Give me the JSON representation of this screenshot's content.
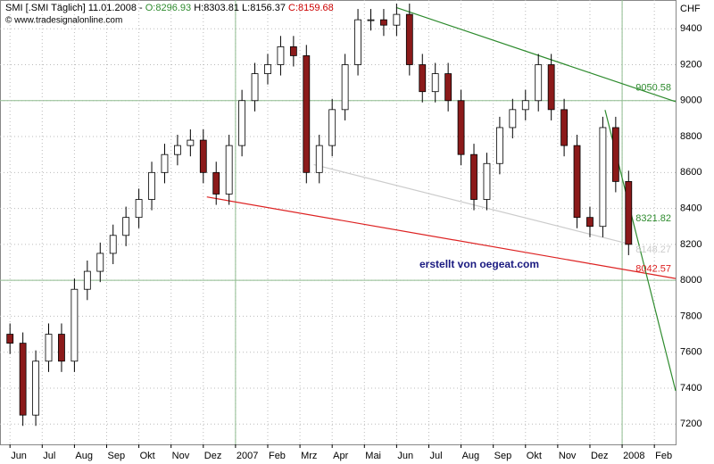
{
  "chart_data": {
    "type": "candlestick",
    "header": {
      "symbol": "SMI [.SMI Täglich] 11.01.2008 -",
      "open_label": "O:",
      "open": 8296.93,
      "high_label": "H:",
      "high": 8303.81,
      "low_label": "L:",
      "low": 8156.37,
      "close_label": "C:",
      "close": 8159.68
    },
    "copyright": "© www.tradesignalonline.com",
    "y_axis_label": "CHF",
    "annotation": "erstellt von oegeat.com",
    "x": [
      0,
      0.4,
      0.8,
      1.2,
      1.6,
      2,
      2.4,
      2.8,
      3.2,
      3.6,
      4,
      4.4,
      4.8,
      5.2,
      5.6,
      6,
      6.4,
      6.8,
      7.2,
      7.6,
      8,
      8.4,
      8.8,
      9.2,
      9.6,
      10,
      10.4,
      10.8,
      11.2,
      11.6,
      12,
      12.4,
      12.8,
      13.2,
      13.6,
      14,
      14.4,
      14.8,
      15.2,
      15.6,
      16,
      16.4,
      16.8,
      17.2,
      17.6,
      18,
      18.4,
      18.8,
      19.2
    ],
    "open": [
      7700,
      7650,
      7250,
      7550,
      7700,
      7550,
      7950,
      8050,
      8150,
      8250,
      8350,
      8450,
      8600,
      8700,
      8750,
      8780,
      8600,
      8480,
      8750,
      9000,
      9150,
      9200,
      9300,
      9250,
      8600,
      8750,
      8950,
      9200,
      9450,
      9450,
      9420,
      9480,
      9200,
      9050,
      9150,
      9000,
      8700,
      8450,
      8650,
      8850,
      8950,
      9000,
      9200,
      8950,
      8750,
      8350,
      8300,
      8850,
      8550
    ],
    "high": [
      7760,
      7710,
      7610,
      7760,
      7760,
      8010,
      8110,
      8210,
      8310,
      8410,
      8510,
      8660,
      8760,
      8810,
      8840,
      8840,
      8660,
      8810,
      9060,
      9210,
      9260,
      9360,
      9360,
      9310,
      8810,
      9010,
      9260,
      9510,
      9510,
      9510,
      9540,
      9540,
      9260,
      9210,
      9210,
      9060,
      8760,
      8710,
      8910,
      9010,
      9060,
      9260,
      9260,
      9010,
      8810,
      8410,
      8910,
      8910,
      8610
    ],
    "low": [
      7590,
      7190,
      7190,
      7490,
      7490,
      7490,
      7890,
      7990,
      8090,
      8190,
      8290,
      8390,
      8540,
      8640,
      8690,
      8540,
      8420,
      8420,
      8690,
      8940,
      9090,
      9140,
      9190,
      8540,
      8540,
      8690,
      8890,
      9140,
      9390,
      9360,
      9360,
      9140,
      8990,
      8990,
      8940,
      8640,
      8390,
      8390,
      8590,
      8790,
      8890,
      8940,
      8890,
      8690,
      8290,
      8240,
      8240,
      8490,
      8140
    ],
    "close": [
      7650,
      7250,
      7550,
      7700,
      7550,
      7950,
      8050,
      8150,
      8250,
      8350,
      8450,
      8600,
      8700,
      8750,
      8780,
      8600,
      8480,
      8750,
      9000,
      9150,
      9200,
      9300,
      9250,
      8600,
      8750,
      8950,
      9200,
      9450,
      9450,
      9420,
      9480,
      9200,
      9050,
      9150,
      9000,
      8700,
      8450,
      8650,
      8850,
      8950,
      9000,
      9200,
      8950,
      8750,
      8350,
      8300,
      8850,
      8550,
      8200
    ],
    "up_color": "#ffffff",
    "down_color": "#8b1a1a",
    "xlim": [
      -0.31,
      20.66
    ],
    "xticks": [
      {
        "value": 0,
        "label": "Jun"
      },
      {
        "value": 1,
        "label": "Jul"
      },
      {
        "value": 2,
        "label": "Aug"
      },
      {
        "value": 3,
        "label": "Sep"
      },
      {
        "value": 4,
        "label": "Okt"
      },
      {
        "value": 5,
        "label": "Nov"
      },
      {
        "value": 6,
        "label": "Dez"
      },
      {
        "value": 7,
        "label": "2007"
      },
      {
        "value": 8,
        "label": "Feb"
      },
      {
        "value": 9,
        "label": "Mrz"
      },
      {
        "value": 10,
        "label": "Apr"
      },
      {
        "value": 11,
        "label": "Mai"
      },
      {
        "value": 12,
        "label": "Jun"
      },
      {
        "value": 13,
        "label": "Jul"
      },
      {
        "value": 14,
        "label": "Aug"
      },
      {
        "value": 15,
        "label": "Sep"
      },
      {
        "value": 16,
        "label": "Okt"
      },
      {
        "value": 17,
        "label": "Nov"
      },
      {
        "value": 18,
        "label": "Dez"
      },
      {
        "value": 19,
        "label": "2008"
      },
      {
        "value": 20,
        "label": "Feb"
      }
    ],
    "ylim": [
      7087,
      9560
    ],
    "yticks": [
      7200,
      7400,
      7600,
      7800,
      8000,
      8200,
      8400,
      8600,
      8800,
      9000,
      9200,
      9400
    ],
    "hlines": [
      8000,
      9000
    ],
    "vlines": [
      7,
      19
    ],
    "grid": true,
    "trendlines": [
      {
        "color": "#2e8b2e",
        "x": [
          11.99,
          20.66
        ],
        "y": [
          9518,
          8994
        ],
        "label": "9050.58"
      },
      {
        "color": "#dd2222",
        "x": [
          6.11,
          20.66
        ],
        "y": [
          8464,
          8010
        ],
        "label": "8042.57"
      },
      {
        "color": "#cccccc",
        "x": [
          9.43,
          19.22
        ],
        "y": [
          8644,
          8202
        ],
        "label": "8148.27"
      },
      {
        "color": "#2e8b2e",
        "x": [
          18.47,
          20.66
        ],
        "y": [
          8948,
          7385
        ],
        "label": "8321.82"
      }
    ]
  }
}
